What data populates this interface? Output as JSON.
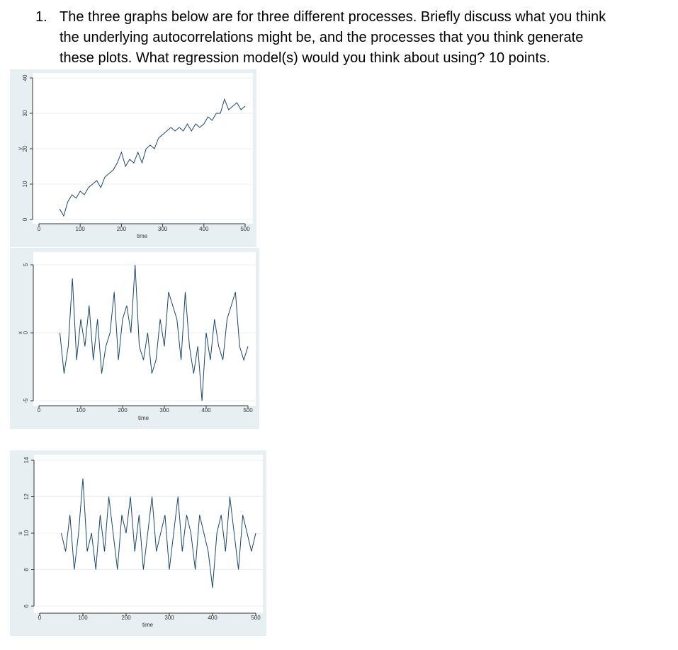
{
  "question": {
    "number": "1.",
    "lines": [
      "The three graphs below are for three different processes.  Briefly discuss what you think",
      "the underlying autocorrelations might be, and the processes that you think generate",
      "these plots.  What regression model(s) would you think about using?  10 points."
    ]
  },
  "chart_data": [
    {
      "type": "line",
      "x_label": "time",
      "y_label": "y",
      "color": "#1a476f",
      "xlim": [
        0,
        500
      ],
      "xticks": [
        0,
        100,
        200,
        300,
        400,
        500
      ],
      "ylim": [
        0,
        40
      ],
      "yticks": [
        0,
        10,
        20,
        30,
        40
      ],
      "grid": true,
      "x": [
        50,
        60,
        70,
        80,
        90,
        100,
        110,
        120,
        130,
        140,
        150,
        160,
        170,
        180,
        190,
        200,
        210,
        220,
        230,
        240,
        250,
        260,
        270,
        280,
        290,
        300,
        310,
        320,
        330,
        340,
        350,
        360,
        370,
        380,
        390,
        400,
        410,
        420,
        430,
        440,
        450,
        460,
        470,
        480,
        490,
        500
      ],
      "values": [
        3,
        1,
        5,
        7,
        6,
        8,
        7,
        9,
        10,
        11,
        9,
        12,
        13,
        14,
        16,
        19,
        15,
        17,
        16,
        19,
        16,
        20,
        21,
        20,
        23,
        24,
        25,
        26,
        25,
        26,
        25,
        27,
        25,
        27,
        26,
        27,
        29,
        28,
        30,
        30,
        34,
        31,
        32,
        33,
        31,
        32
      ]
    },
    {
      "type": "line",
      "x_label": "time",
      "y_label": "x",
      "color": "#1a476f",
      "xlim": [
        0,
        500
      ],
      "xticks": [
        0,
        100,
        200,
        300,
        400,
        500
      ],
      "ylim": [
        -5,
        5
      ],
      "yticks": [
        -5,
        0,
        5
      ],
      "grid": true,
      "x": [
        50,
        60,
        70,
        80,
        90,
        100,
        110,
        120,
        130,
        140,
        150,
        160,
        170,
        180,
        190,
        200,
        210,
        220,
        230,
        240,
        250,
        260,
        270,
        280,
        290,
        300,
        310,
        320,
        330,
        340,
        350,
        360,
        370,
        380,
        390,
        400,
        410,
        420,
        430,
        440,
        450,
        460,
        470,
        480,
        490,
        500
      ],
      "values": [
        0,
        -3,
        -1,
        4,
        -2,
        1,
        -1,
        2,
        -2,
        1,
        -3,
        -1,
        0,
        3,
        -2,
        1,
        2,
        0,
        5,
        -1,
        -2,
        0,
        -3,
        -2,
        1,
        -1,
        3,
        2,
        1,
        -2,
        3,
        -1,
        -3,
        -1,
        -5,
        0,
        -2,
        1,
        -1,
        -2,
        1,
        2,
        3,
        -1,
        -2,
        -1
      ]
    },
    {
      "type": "line",
      "x_label": "time",
      "y_label": "s",
      "color": "#1a476f",
      "xlim": [
        0,
        500
      ],
      "xticks": [
        0,
        100,
        200,
        300,
        400,
        500
      ],
      "ylim": [
        6,
        14
      ],
      "yticks": [
        6,
        8,
        10,
        12,
        14
      ],
      "grid": true,
      "x": [
        50,
        60,
        70,
        80,
        90,
        100,
        110,
        120,
        130,
        140,
        150,
        160,
        170,
        180,
        190,
        200,
        210,
        220,
        230,
        240,
        250,
        260,
        270,
        280,
        290,
        300,
        310,
        320,
        330,
        340,
        350,
        360,
        370,
        380,
        390,
        400,
        410,
        420,
        430,
        440,
        450,
        460,
        470,
        480,
        490,
        500
      ],
      "values": [
        10,
        9,
        11,
        8,
        10,
        13,
        9,
        10,
        8,
        11,
        9,
        12,
        10,
        8,
        11,
        10,
        12,
        9,
        11,
        8,
        10,
        12,
        9,
        10,
        11,
        8,
        10,
        12,
        9,
        11,
        10,
        8,
        11,
        10,
        9,
        7,
        10,
        11,
        9,
        12,
        10,
        8,
        11,
        10,
        9,
        10
      ]
    }
  ]
}
